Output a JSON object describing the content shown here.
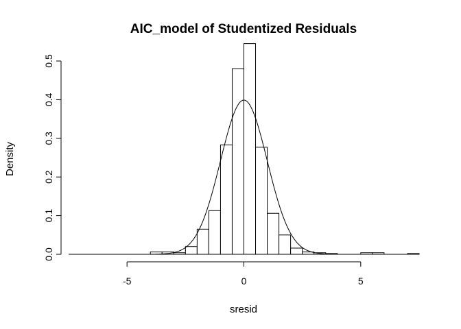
{
  "chart_data": {
    "type": "bar",
    "title": "AIC_model of Studentized Residuals",
    "xlabel": "sresid",
    "ylabel": "Density",
    "xlim": [
      -7.5,
      7.5
    ],
    "ylim": [
      0,
      0.55
    ],
    "xticks": [
      -5,
      0,
      5
    ],
    "xtick_labels": [
      "-5",
      "0",
      "5"
    ],
    "yticks": [
      0.0,
      0.1,
      0.2,
      0.3,
      0.4,
      0.5
    ],
    "ytick_labels": [
      "0.0",
      "0.1",
      "0.2",
      "0.3",
      "0.4",
      "0.5"
    ],
    "grid": false,
    "legend": "none",
    "bin_width": 0.5,
    "bins": [
      {
        "x0": -4.0,
        "x1": -3.5,
        "density": 0.006
      },
      {
        "x0": -3.5,
        "x1": -3.0,
        "density": 0.006
      },
      {
        "x0": -3.0,
        "x1": -2.5,
        "density": 0.004
      },
      {
        "x0": -2.5,
        "x1": -2.0,
        "density": 0.02
      },
      {
        "x0": -2.0,
        "x1": -1.5,
        "density": 0.065
      },
      {
        "x0": -1.5,
        "x1": -1.0,
        "density": 0.113
      },
      {
        "x0": -1.0,
        "x1": -0.5,
        "density": 0.283
      },
      {
        "x0": -0.5,
        "x1": 0.0,
        "density": 0.48
      },
      {
        "x0": 0.0,
        "x1": 0.5,
        "density": 0.545
      },
      {
        "x0": 0.5,
        "x1": 1.0,
        "density": 0.277
      },
      {
        "x0": 1.0,
        "x1": 1.5,
        "density": 0.106
      },
      {
        "x0": 1.5,
        "x1": 2.0,
        "density": 0.05
      },
      {
        "x0": 2.0,
        "x1": 2.5,
        "density": 0.016
      },
      {
        "x0": 2.5,
        "x1": 3.0,
        "density": 0.006
      },
      {
        "x0": 3.0,
        "x1": 3.5,
        "density": 0.004
      },
      {
        "x0": 3.5,
        "x1": 4.0,
        "density": 0.002
      },
      {
        "x0": 5.0,
        "x1": 5.5,
        "density": 0.004
      },
      {
        "x0": 5.5,
        "x1": 6.0,
        "density": 0.004
      },
      {
        "x0": 7.0,
        "x1": 7.5,
        "density": 0.002
      }
    ],
    "overlay_curve": {
      "type": "normal_density",
      "mean": 0,
      "sd": 1
    }
  }
}
